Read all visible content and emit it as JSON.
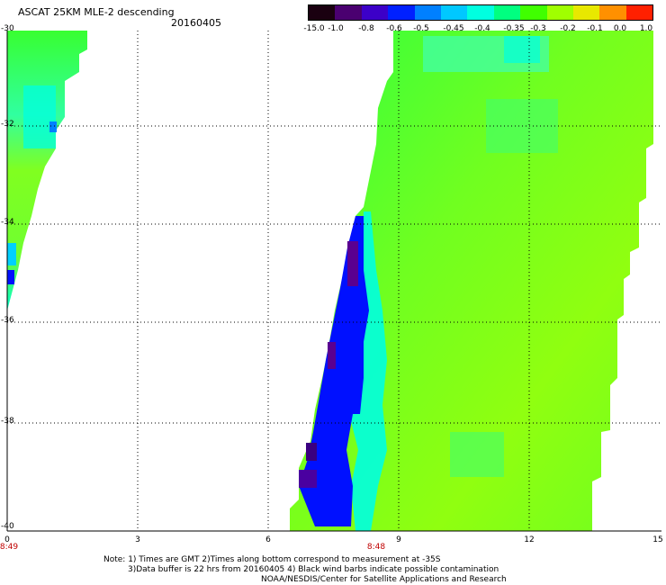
{
  "header": {
    "title": "ASCAT 25KM MLE-2 descending",
    "date": "20160405"
  },
  "colorbar": {
    "labels": [
      "-15.0",
      "-1.0",
      "-0.8",
      "-0.6",
      "-0.5",
      "-0.45",
      "-0.4",
      "-0.35",
      "-0.3",
      "-0.2",
      "-0.1",
      "0.0",
      "1.0"
    ],
    "colors": [
      "#1a0010",
      "#4a0070",
      "#3c00c8",
      "#0020ff",
      "#0080ff",
      "#00c8ff",
      "#00ffe0",
      "#00ff80",
      "#40ff00",
      "#a0ff00",
      "#e8e800",
      "#ff9000",
      "#ff2000"
    ]
  },
  "axes": {
    "y_labels": [
      "-30",
      "-32",
      "-34",
      "-36",
      "-38",
      "-40"
    ],
    "x_labels": [
      "0",
      "3",
      "6",
      "9",
      "12",
      "15"
    ],
    "time_labels": [
      "8:49",
      "8:48"
    ]
  },
  "notes": [
    "Note: 1) Times are GMT 2)Times along bottom correspond to measurement at -35S",
    "3)Data buffer is 22 hrs from 20160405 4) Black wind barbs indicate possible contamination",
    "NOAA/NESDIS/Center for Satellite Applications and Research"
  ],
  "colors": {
    "green": "#40ff20",
    "lime": "#90ff00",
    "cyan": "#00ffe0",
    "blue": "#0010ff",
    "purple": "#5a0090"
  }
}
